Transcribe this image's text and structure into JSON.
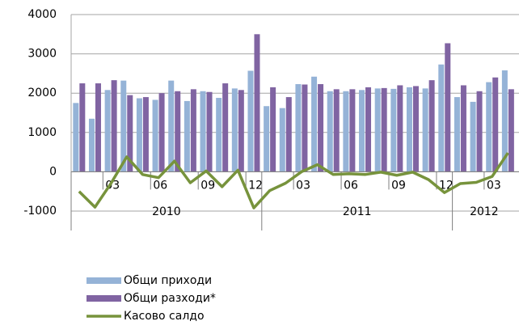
{
  "chart_data": {
    "type": "bar-line",
    "categories": [
      null,
      null,
      "03",
      null,
      null,
      "06",
      null,
      null,
      "09",
      null,
      null,
      "12",
      null,
      null,
      "03",
      null,
      null,
      "06",
      null,
      null,
      "09",
      null,
      null,
      "12",
      null,
      null,
      "03",
      null
    ],
    "year_labels": [
      "2010",
      "2011",
      "2012"
    ],
    "series": [
      {
        "name": "Общи приходи",
        "type": "bar",
        "color": "#95b3d7",
        "values": [
          1750,
          1350,
          2080,
          2320,
          1870,
          1830,
          2320,
          1800,
          2050,
          1880,
          2120,
          2570,
          1670,
          1620,
          2230,
          2420,
          2050,
          2050,
          2080,
          2120,
          2110,
          2150,
          2120,
          2730,
          1900,
          1780,
          2280,
          2580
        ]
      },
      {
        "name": "Общи разходи*",
        "type": "bar",
        "color": "#8064a2",
        "values": [
          2250,
          2250,
          2330,
          1950,
          1900,
          2000,
          2050,
          2100,
          2030,
          2250,
          2080,
          3500,
          2150,
          1900,
          2220,
          2230,
          2100,
          2100,
          2150,
          2130,
          2200,
          2180,
          2330,
          3270,
          2200,
          2050,
          2400,
          2100
        ]
      },
      {
        "name": "Касово салдо",
        "type": "line",
        "color": "#77933c",
        "values": [
          -500,
          -900,
          -300,
          380,
          -70,
          -150,
          270,
          -280,
          20,
          -380,
          40,
          -920,
          -480,
          -290,
          0,
          180,
          -70,
          -50,
          -70,
          -10,
          -90,
          -10,
          -200,
          -530,
          -300,
          -270,
          -120,
          480
        ]
      }
    ],
    "ylim": [
      -1000,
      4000
    ],
    "yticks": [
      -1000,
      0,
      1000,
      2000,
      3000,
      4000
    ],
    "grid": true
  }
}
